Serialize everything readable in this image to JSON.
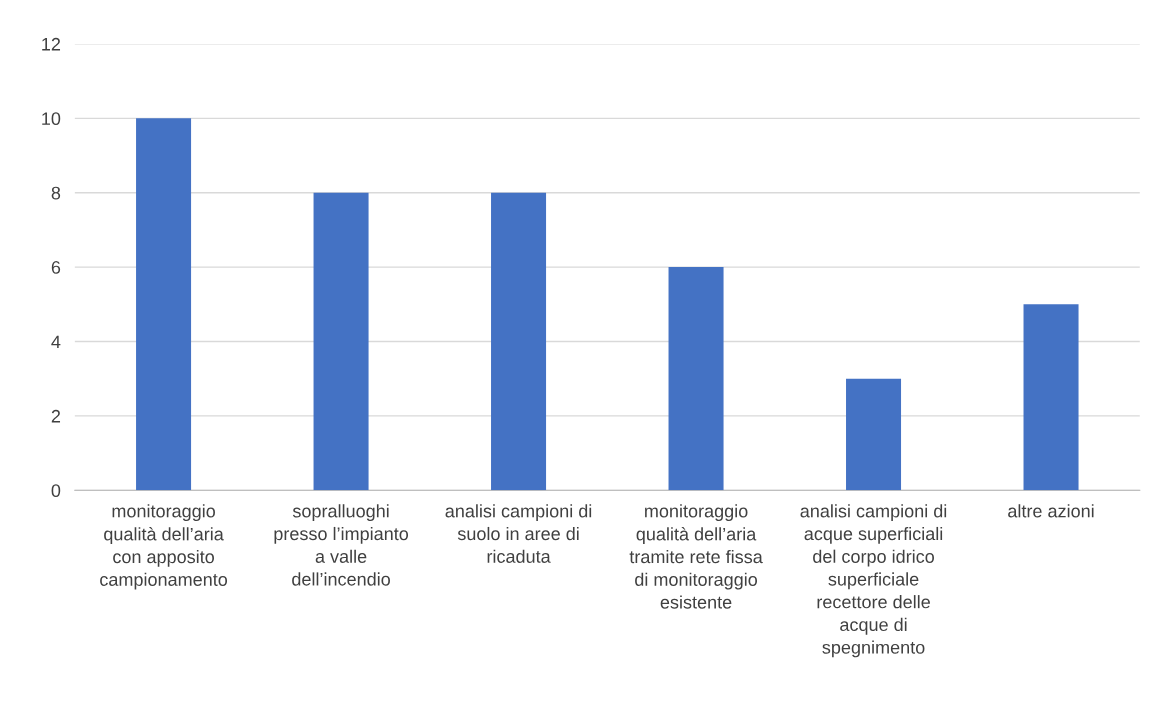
{
  "chart_data": {
    "type": "bar",
    "categories": [
      "monitoraggio\nqualità dell’aria\ncon apposito\ncampionamento",
      "sopralluoghi\npresso l’impianto\na valle\ndell’incendio",
      "analisi campioni di\nsuolo in aree di\nricaduta",
      "monitoraggio\nqualità dell’aria\ntramite rete fissa\ndi monitoraggio\nesistente",
      "analisi campioni di\nacque superficiali\ndel corpo idrico\nsuperficiale\nrecettore delle\nacque di\nspegnimento",
      "altre azioni"
    ],
    "values": [
      10,
      8,
      8,
      6,
      3,
      5
    ],
    "color": "#4472c4",
    "ylim": [
      0,
      12
    ],
    "yticks": [
      0,
      2,
      4,
      6,
      8,
      10,
      12
    ],
    "grid": "y"
  }
}
